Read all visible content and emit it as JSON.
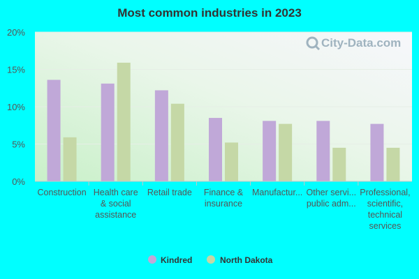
{
  "chart_data": {
    "type": "bar",
    "title": "Most common industries in 2023",
    "categories": [
      [
        "Construction"
      ],
      [
        "Health care",
        "& social",
        "assistance"
      ],
      [
        "Retail trade"
      ],
      [
        "Finance &",
        "insurance"
      ],
      [
        "Manufactur..."
      ],
      [
        "Other servi...",
        "public adm..."
      ],
      [
        "Professional,",
        "scientific,",
        "technical",
        "services"
      ]
    ],
    "series": [
      {
        "name": "Kindred",
        "color": "#c0a8d8",
        "values": [
          13.6,
          13.1,
          12.2,
          8.5,
          8.1,
          8.1,
          7.7
        ]
      },
      {
        "name": "North Dakota",
        "color": "#c5d8a6",
        "values": [
          5.9,
          15.9,
          10.4,
          5.2,
          7.7,
          4.5,
          4.5
        ]
      }
    ],
    "y_ticks": [
      "0%",
      "5%",
      "10%",
      "15%",
      "20%"
    ],
    "ylim": [
      0,
      20
    ],
    "grid": true,
    "legend_position": "bottom-center",
    "watermark": "City-Data.com"
  }
}
